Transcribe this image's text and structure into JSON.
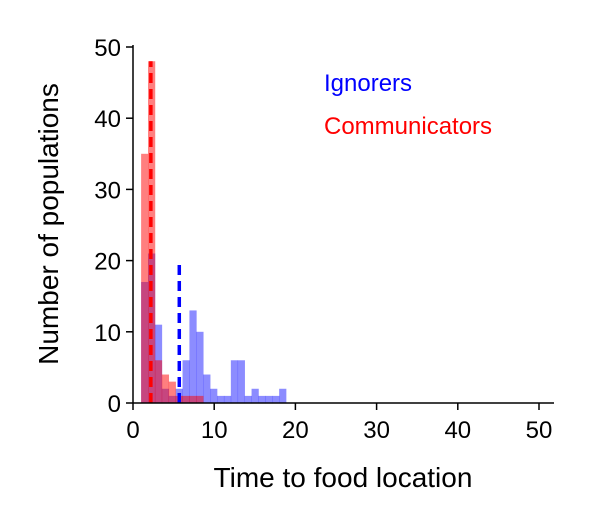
{
  "chart_data": {
    "type": "histogram",
    "title": "",
    "xlabel": "Time to food location",
    "ylabel": "Number of populations",
    "xlim": [
      0,
      52
    ],
    "ylim": [
      0,
      50
    ],
    "xticks": [
      0,
      10,
      20,
      30,
      40,
      50
    ],
    "yticks": [
      0,
      10,
      20,
      30,
      40,
      50
    ],
    "grid": false,
    "legend_position": "top-right",
    "bin_width": 0.85,
    "series": [
      {
        "name": "Ignorers",
        "color": "#0000ff",
        "bar_opacity": 0.45,
        "bins": [
          {
            "x0": 1.0,
            "count": 17
          },
          {
            "x0": 1.85,
            "count": 21
          },
          {
            "x0": 2.7,
            "count": 11
          },
          {
            "x0": 3.55,
            "count": 2
          },
          {
            "x0": 4.4,
            "count": 1
          },
          {
            "x0": 5.25,
            "count": 2
          },
          {
            "x0": 6.1,
            "count": 6
          },
          {
            "x0": 6.95,
            "count": 13
          },
          {
            "x0": 7.8,
            "count": 10
          },
          {
            "x0": 8.65,
            "count": 4
          },
          {
            "x0": 9.5,
            "count": 2
          },
          {
            "x0": 10.35,
            "count": 1
          },
          {
            "x0": 11.2,
            "count": 1
          },
          {
            "x0": 12.05,
            "count": 6
          },
          {
            "x0": 12.9,
            "count": 6
          },
          {
            "x0": 13.75,
            "count": 1
          },
          {
            "x0": 14.6,
            "count": 2
          },
          {
            "x0": 15.45,
            "count": 1
          },
          {
            "x0": 16.3,
            "count": 1
          },
          {
            "x0": 17.15,
            "count": 1
          },
          {
            "x0": 18.0,
            "count": 2
          }
        ],
        "mean": 5.7,
        "mean_line_top": 20
      },
      {
        "name": "Communicators",
        "color": "#ff0000",
        "bar_opacity": 0.5,
        "bins": [
          {
            "x0": 1.0,
            "count": 35
          },
          {
            "x0": 1.85,
            "count": 48
          },
          {
            "x0": 2.7,
            "count": 6
          },
          {
            "x0": 3.55,
            "count": 4
          },
          {
            "x0": 4.4,
            "count": 3
          },
          {
            "x0": 5.25,
            "count": 1
          },
          {
            "x0": 6.1,
            "count": 1
          },
          {
            "x0": 6.95,
            "count": 1
          },
          {
            "x0": 7.8,
            "count": 1
          }
        ],
        "mean": 2.2,
        "mean_line_top": 48
      }
    ]
  }
}
